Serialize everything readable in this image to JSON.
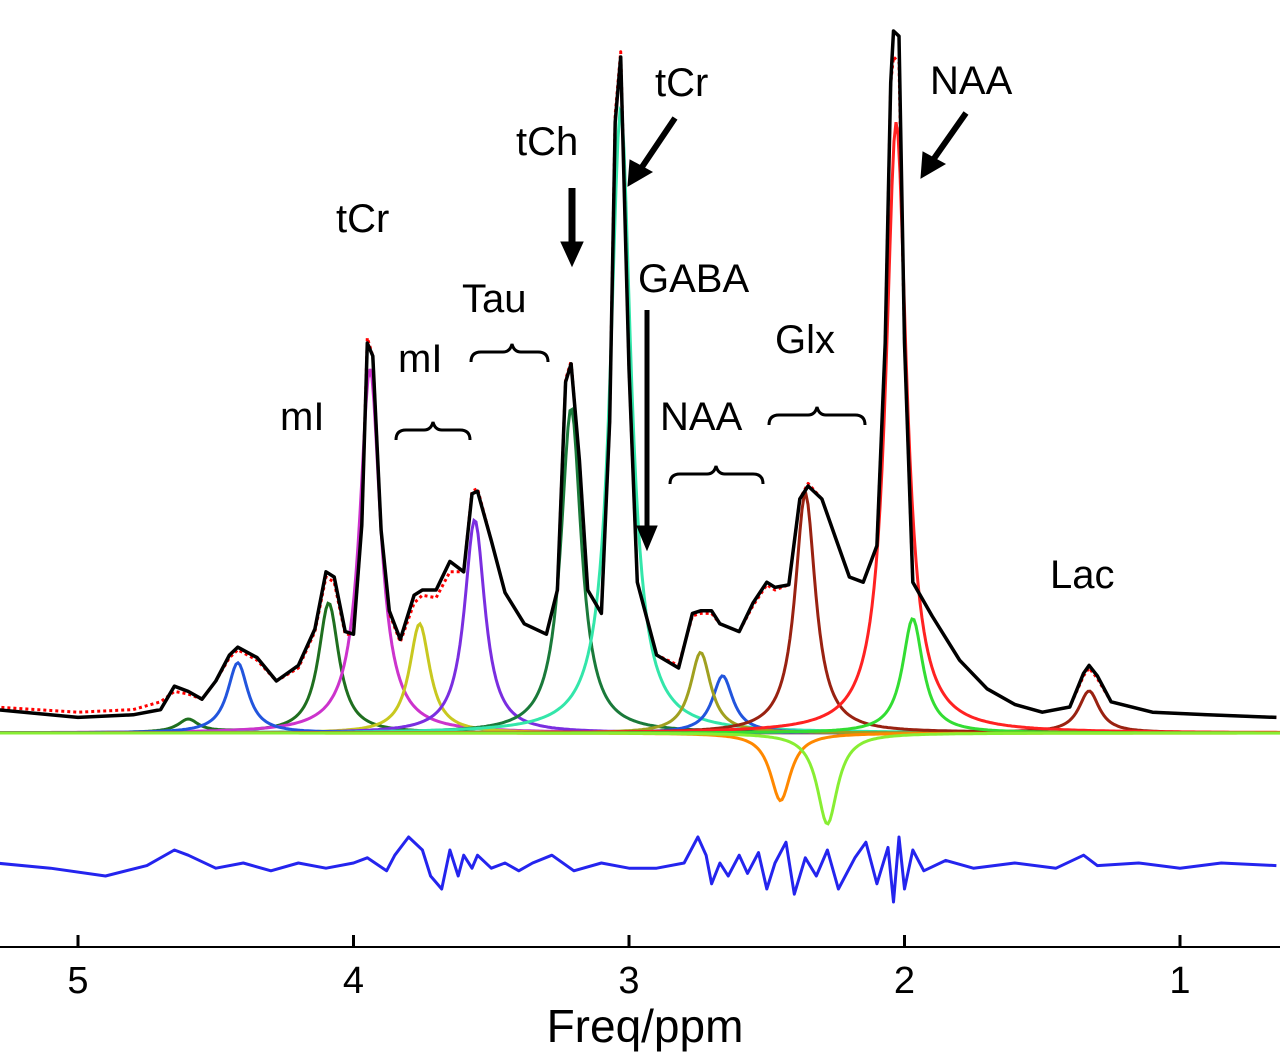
{
  "chart_data": {
    "type": "line",
    "xlabel": "Freq/ppm",
    "xlim": [
      5.3,
      0.65
    ],
    "x_reversed": true,
    "x_ticks": [
      5,
      4,
      3,
      2,
      1
    ],
    "grid": false,
    "legend": "none",
    "series": [
      {
        "role": "measured",
        "color": "#000000",
        "style": "solid",
        "points": [
          [
            5.3,
            0.09
          ],
          [
            5.0,
            0.06
          ],
          [
            4.8,
            0.07
          ],
          [
            4.7,
            0.09
          ],
          [
            4.65,
            0.18
          ],
          [
            4.6,
            0.16
          ],
          [
            4.55,
            0.13
          ],
          [
            4.5,
            0.2
          ],
          [
            4.45,
            0.3
          ],
          [
            4.42,
            0.33
          ],
          [
            4.35,
            0.29
          ],
          [
            4.28,
            0.2
          ],
          [
            4.2,
            0.26
          ],
          [
            4.14,
            0.4
          ],
          [
            4.1,
            0.62
          ],
          [
            4.07,
            0.6
          ],
          [
            4.03,
            0.39
          ],
          [
            4.0,
            0.38
          ],
          [
            3.97,
            0.8
          ],
          [
            3.95,
            1.5
          ],
          [
            3.93,
            1.45
          ],
          [
            3.9,
            0.78
          ],
          [
            3.87,
            0.47
          ],
          [
            3.83,
            0.36
          ],
          [
            3.78,
            0.53
          ],
          [
            3.75,
            0.55
          ],
          [
            3.7,
            0.55
          ],
          [
            3.65,
            0.66
          ],
          [
            3.6,
            0.62
          ],
          [
            3.57,
            0.92
          ],
          [
            3.55,
            0.93
          ],
          [
            3.5,
            0.74
          ],
          [
            3.45,
            0.54
          ],
          [
            3.38,
            0.42
          ],
          [
            3.3,
            0.38
          ],
          [
            3.26,
            0.55
          ],
          [
            3.23,
            1.35
          ],
          [
            3.21,
            1.42
          ],
          [
            3.18,
            1.05
          ],
          [
            3.15,
            0.55
          ],
          [
            3.1,
            0.46
          ],
          [
            3.07,
            1.2
          ],
          [
            3.05,
            2.35
          ],
          [
            3.03,
            2.6
          ],
          [
            3.0,
            1.4
          ],
          [
            2.97,
            0.58
          ],
          [
            2.9,
            0.3
          ],
          [
            2.82,
            0.25
          ],
          [
            2.77,
            0.46
          ],
          [
            2.74,
            0.47
          ],
          [
            2.7,
            0.47
          ],
          [
            2.67,
            0.42
          ],
          [
            2.6,
            0.39
          ],
          [
            2.55,
            0.5
          ],
          [
            2.5,
            0.58
          ],
          [
            2.47,
            0.56
          ],
          [
            2.42,
            0.57
          ],
          [
            2.38,
            0.9
          ],
          [
            2.35,
            0.95
          ],
          [
            2.3,
            0.9
          ],
          [
            2.25,
            0.75
          ],
          [
            2.2,
            0.6
          ],
          [
            2.15,
            0.58
          ],
          [
            2.1,
            0.72
          ],
          [
            2.07,
            1.5
          ],
          [
            2.05,
            2.5
          ],
          [
            2.04,
            2.7
          ],
          [
            2.02,
            2.68
          ],
          [
            2.0,
            1.5
          ],
          [
            1.97,
            0.58
          ],
          [
            1.9,
            0.45
          ],
          [
            1.8,
            0.28
          ],
          [
            1.7,
            0.17
          ],
          [
            1.6,
            0.11
          ],
          [
            1.5,
            0.08
          ],
          [
            1.4,
            0.1
          ],
          [
            1.35,
            0.23
          ],
          [
            1.33,
            0.26
          ],
          [
            1.3,
            0.22
          ],
          [
            1.25,
            0.12
          ],
          [
            1.1,
            0.08
          ],
          [
            0.9,
            0.07
          ],
          [
            0.65,
            0.06
          ]
        ]
      },
      {
        "role": "fit",
        "color": "#ff0000",
        "style": "dotted",
        "points": [
          [
            5.3,
            0.1
          ],
          [
            5.0,
            0.08
          ],
          [
            4.8,
            0.09
          ],
          [
            4.7,
            0.12
          ],
          [
            4.65,
            0.16
          ],
          [
            4.6,
            0.15
          ],
          [
            4.55,
            0.13
          ],
          [
            4.5,
            0.2
          ],
          [
            4.45,
            0.29
          ],
          [
            4.42,
            0.32
          ],
          [
            4.35,
            0.28
          ],
          [
            4.28,
            0.2
          ],
          [
            4.2,
            0.25
          ],
          [
            4.14,
            0.39
          ],
          [
            4.1,
            0.6
          ],
          [
            4.07,
            0.58
          ],
          [
            4.03,
            0.38
          ],
          [
            4.0,
            0.38
          ],
          [
            3.97,
            0.8
          ],
          [
            3.95,
            1.52
          ],
          [
            3.93,
            1.45
          ],
          [
            3.9,
            0.78
          ],
          [
            3.87,
            0.46
          ],
          [
            3.83,
            0.35
          ],
          [
            3.78,
            0.5
          ],
          [
            3.75,
            0.53
          ],
          [
            3.7,
            0.52
          ],
          [
            3.65,
            0.62
          ],
          [
            3.6,
            0.62
          ],
          [
            3.57,
            0.93
          ],
          [
            3.55,
            0.94
          ],
          [
            3.5,
            0.74
          ],
          [
            3.45,
            0.54
          ],
          [
            3.38,
            0.42
          ],
          [
            3.3,
            0.38
          ],
          [
            3.26,
            0.55
          ],
          [
            3.23,
            1.36
          ],
          [
            3.21,
            1.43
          ],
          [
            3.18,
            1.05
          ],
          [
            3.15,
            0.55
          ],
          [
            3.1,
            0.46
          ],
          [
            3.07,
            1.2
          ],
          [
            3.05,
            2.38
          ],
          [
            3.03,
            2.62
          ],
          [
            3.0,
            1.4
          ],
          [
            2.97,
            0.58
          ],
          [
            2.9,
            0.3
          ],
          [
            2.82,
            0.26
          ],
          [
            2.77,
            0.45
          ],
          [
            2.74,
            0.46
          ],
          [
            2.7,
            0.46
          ],
          [
            2.67,
            0.42
          ],
          [
            2.6,
            0.39
          ],
          [
            2.55,
            0.49
          ],
          [
            2.5,
            0.57
          ],
          [
            2.47,
            0.55
          ],
          [
            2.42,
            0.57
          ],
          [
            2.38,
            0.9
          ],
          [
            2.35,
            0.96
          ],
          [
            2.3,
            0.9
          ],
          [
            2.25,
            0.75
          ],
          [
            2.2,
            0.6
          ],
          [
            2.15,
            0.58
          ],
          [
            2.1,
            0.72
          ],
          [
            2.07,
            1.5
          ],
          [
            2.05,
            2.5
          ],
          [
            2.04,
            2.6
          ],
          [
            2.02,
            2.58
          ],
          [
            2.0,
            1.5
          ],
          [
            1.97,
            0.58
          ],
          [
            1.9,
            0.45
          ],
          [
            1.8,
            0.28
          ],
          [
            1.7,
            0.17
          ],
          [
            1.6,
            0.11
          ],
          [
            1.5,
            0.08
          ],
          [
            1.4,
            0.1
          ],
          [
            1.35,
            0.22
          ],
          [
            1.33,
            0.25
          ],
          [
            1.3,
            0.21
          ],
          [
            1.25,
            0.12
          ],
          [
            1.1,
            0.08
          ],
          [
            0.9,
            0.07
          ],
          [
            0.65,
            0.06
          ]
        ]
      },
      {
        "role": "residual",
        "color": "#2424ee",
        "style": "solid",
        "points": [
          [
            5.3,
            -0.5
          ],
          [
            5.1,
            -0.52
          ],
          [
            4.9,
            -0.55
          ],
          [
            4.75,
            -0.51
          ],
          [
            4.65,
            -0.45
          ],
          [
            4.6,
            -0.47
          ],
          [
            4.5,
            -0.52
          ],
          [
            4.4,
            -0.5
          ],
          [
            4.3,
            -0.53
          ],
          [
            4.2,
            -0.5
          ],
          [
            4.1,
            -0.52
          ],
          [
            4.0,
            -0.5
          ],
          [
            3.95,
            -0.48
          ],
          [
            3.88,
            -0.53
          ],
          [
            3.85,
            -0.47
          ],
          [
            3.8,
            -0.4
          ],
          [
            3.75,
            -0.45
          ],
          [
            3.72,
            -0.55
          ],
          [
            3.68,
            -0.6
          ],
          [
            3.65,
            -0.45
          ],
          [
            3.62,
            -0.55
          ],
          [
            3.6,
            -0.47
          ],
          [
            3.57,
            -0.52
          ],
          [
            3.55,
            -0.47
          ],
          [
            3.5,
            -0.52
          ],
          [
            3.45,
            -0.5
          ],
          [
            3.4,
            -0.53
          ],
          [
            3.35,
            -0.5
          ],
          [
            3.28,
            -0.47
          ],
          [
            3.2,
            -0.53
          ],
          [
            3.1,
            -0.5
          ],
          [
            3.0,
            -0.52
          ],
          [
            2.9,
            -0.52
          ],
          [
            2.8,
            -0.5
          ],
          [
            2.75,
            -0.4
          ],
          [
            2.72,
            -0.47
          ],
          [
            2.7,
            -0.58
          ],
          [
            2.67,
            -0.5
          ],
          [
            2.64,
            -0.55
          ],
          [
            2.6,
            -0.47
          ],
          [
            2.57,
            -0.54
          ],
          [
            2.53,
            -0.46
          ],
          [
            2.5,
            -0.6
          ],
          [
            2.47,
            -0.5
          ],
          [
            2.43,
            -0.42
          ],
          [
            2.4,
            -0.62
          ],
          [
            2.36,
            -0.48
          ],
          [
            2.32,
            -0.55
          ],
          [
            2.28,
            -0.45
          ],
          [
            2.24,
            -0.6
          ],
          [
            2.18,
            -0.48
          ],
          [
            2.14,
            -0.42
          ],
          [
            2.1,
            -0.58
          ],
          [
            2.06,
            -0.44
          ],
          [
            2.04,
            -0.65
          ],
          [
            2.02,
            -0.4
          ],
          [
            2.0,
            -0.6
          ],
          [
            1.97,
            -0.45
          ],
          [
            1.93,
            -0.53
          ],
          [
            1.85,
            -0.49
          ],
          [
            1.75,
            -0.52
          ],
          [
            1.6,
            -0.5
          ],
          [
            1.45,
            -0.52
          ],
          [
            1.35,
            -0.47
          ],
          [
            1.3,
            -0.51
          ],
          [
            1.15,
            -0.5
          ],
          [
            1.0,
            -0.52
          ],
          [
            0.85,
            -0.5
          ],
          [
            0.65,
            -0.51
          ]
        ]
      },
      {
        "role": "component",
        "metabolite": "mI",
        "color": "#1f6f1f",
        "peaks": [
          {
            "x": 4.09,
            "y": 0.5
          },
          {
            "x": 4.6,
            "y": 0.05
          }
        ]
      },
      {
        "role": "component",
        "metabolite": "tCr",
        "color": "#cc33cc",
        "peaks": [
          {
            "x": 3.94,
            "y": 1.4
          }
        ]
      },
      {
        "role": "component",
        "metabolite": "mI",
        "color": "#c8c820",
        "peaks": [
          {
            "x": 3.76,
            "y": 0.42
          }
        ]
      },
      {
        "role": "component",
        "metabolite": "Tau",
        "color": "#7a2ee0",
        "peaks": [
          {
            "x": 3.56,
            "y": 0.82
          }
        ]
      },
      {
        "role": "component",
        "metabolite": "tCh",
        "color": "#1a7a3a",
        "peaks": [
          {
            "x": 3.21,
            "y": 1.25
          }
        ]
      },
      {
        "role": "component",
        "metabolite": "tCr",
        "color": "#33e6aa",
        "peaks": [
          {
            "x": 3.03,
            "y": 2.4
          }
        ]
      },
      {
        "role": "component",
        "metabolite": "",
        "color": "#2255dd",
        "peaks": [
          {
            "x": 4.42,
            "y": 0.27
          },
          {
            "x": 2.66,
            "y": 0.22
          }
        ]
      },
      {
        "role": "component",
        "metabolite": "NAA",
        "color": "#a0a020",
        "peaks": [
          {
            "x": 2.74,
            "y": 0.31
          }
        ]
      },
      {
        "role": "component",
        "metabolite": "Glx",
        "color": "#992211",
        "peaks": [
          {
            "x": 2.36,
            "y": 0.92
          },
          {
            "x": 1.33,
            "y": 0.16
          }
        ]
      },
      {
        "role": "component",
        "metabolite": "NAA",
        "color": "#ff2222",
        "peaks": [
          {
            "x": 2.03,
            "y": 2.35
          }
        ]
      },
      {
        "role": "component",
        "metabolite": "",
        "color": "#33dd33",
        "peaks": [
          {
            "x": 1.97,
            "y": 0.44
          }
        ]
      },
      {
        "role": "component",
        "metabolite": "GABA",
        "color": "#ff8800",
        "peaks": [
          {
            "x": 2.45,
            "y": -0.26
          }
        ]
      },
      {
        "role": "component",
        "metabolite": "",
        "color": "#88ee33",
        "peaks": [
          {
            "x": 2.28,
            "y": -0.35
          }
        ]
      }
    ],
    "annotations": [
      {
        "text": "tCr",
        "arrow": true
      },
      {
        "text": "tCh",
        "arrow": true
      },
      {
        "text": "tCr",
        "arrow": false
      },
      {
        "text": "NAA",
        "arrow": true
      },
      {
        "text": "GABA",
        "arrow": true
      },
      {
        "text": "Tau",
        "brace": true
      },
      {
        "text": "mI",
        "brace": true
      },
      {
        "text": "mI",
        "brace": false
      },
      {
        "text": "Glx",
        "brace": true
      },
      {
        "text": "NAA",
        "brace": true
      },
      {
        "text": "Lac",
        "brace": false
      }
    ]
  }
}
